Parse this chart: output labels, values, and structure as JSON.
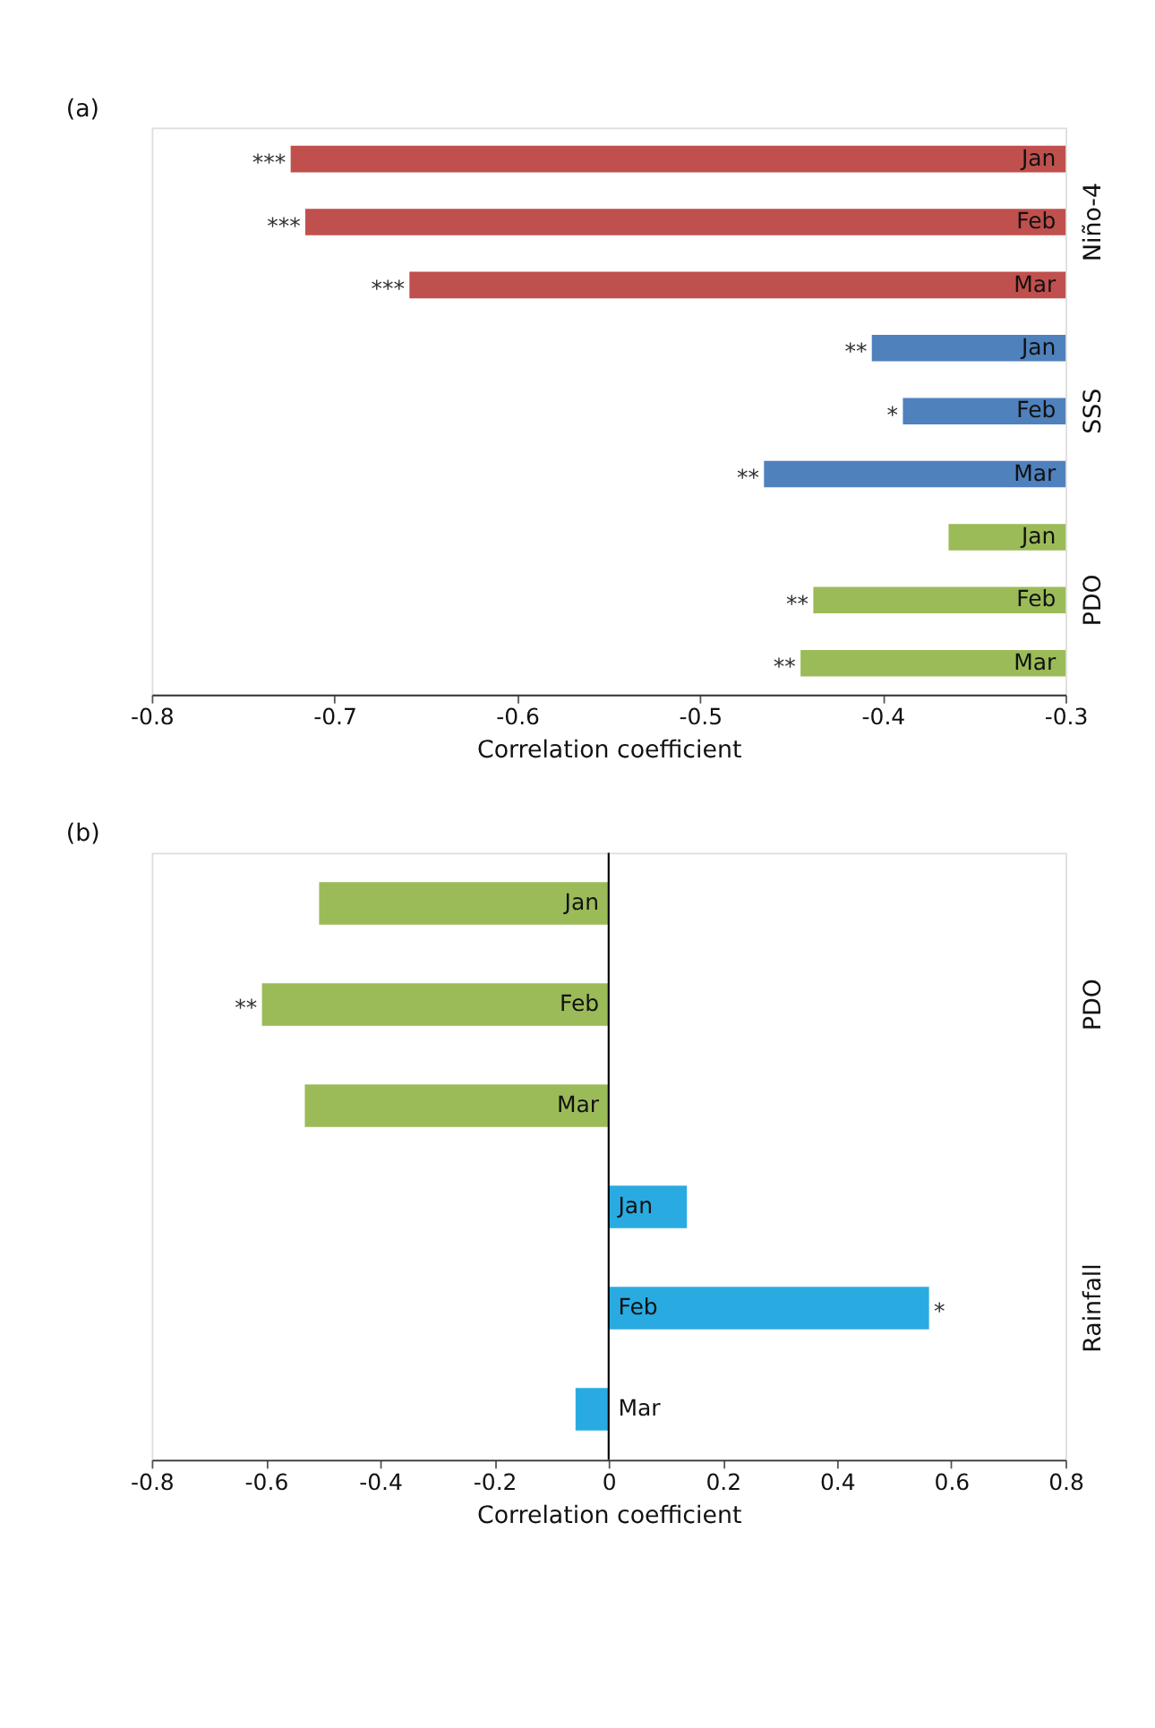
{
  "chart_data": [
    {
      "type": "bar",
      "title": "(a)",
      "orientation": "horizontal",
      "xlabel": "Correlation coefficient",
      "categories": [
        "Jan",
        "Feb",
        "Mar",
        "Jan",
        "Feb",
        "Mar",
        "Jan",
        "Feb",
        "Mar"
      ],
      "series": [
        {
          "name": "Niño-4",
          "color": "#c0504d",
          "values": [
            -0.724,
            -0.716,
            -0.659,
            null,
            null,
            null,
            null,
            null,
            null
          ],
          "value_labels": [
            "***",
            "***",
            "***",
            null,
            null,
            null,
            null,
            null,
            null
          ]
        },
        {
          "name": "SSS",
          "color": "#4f81bd",
          "values": [
            null,
            null,
            null,
            -0.406,
            -0.389,
            -0.465,
            null,
            null,
            null
          ],
          "value_labels": [
            null,
            null,
            null,
            "**",
            "*",
            "**",
            null,
            null,
            null
          ]
        },
        {
          "name": "PDO",
          "color": "#9bbb59",
          "values": [
            null,
            null,
            null,
            null,
            null,
            null,
            -0.364,
            -0.438,
            -0.445
          ],
          "value_labels": [
            null,
            null,
            null,
            null,
            null,
            null,
            null,
            "**",
            "**"
          ]
        }
      ],
      "xlim": [
        -0.8,
        -0.3
      ],
      "xticks": [
        -0.8,
        -0.7,
        -0.6,
        -0.5,
        -0.4,
        -0.3
      ],
      "grid": false,
      "legend": false,
      "tick_labels": "x"
    },
    {
      "type": "bar",
      "title": "(b)",
      "orientation": "horizontal",
      "xlabel": "Correlation coefficient",
      "categories": [
        "Jan",
        "Feb",
        "Mar",
        "Jan",
        "Feb",
        "Mar"
      ],
      "series": [
        {
          "name": "PDO",
          "color": "#9bbb59",
          "values": [
            -0.507,
            -0.607,
            -0.532,
            null,
            null,
            null
          ],
          "value_labels": [
            null,
            "**",
            null,
            null,
            null,
            null
          ]
        },
        {
          "name": "Rainfall",
          "color": "#29abe2",
          "values": [
            null,
            null,
            null,
            0.137,
            0.561,
            -0.058
          ],
          "value_labels": [
            null,
            null,
            null,
            null,
            "*",
            null
          ]
        }
      ],
      "xlim": [
        -0.8,
        0.8
      ],
      "xticks": [
        -0.8,
        -0.6,
        -0.4,
        -0.2,
        0,
        0.2,
        0.4,
        0.6,
        0.8
      ],
      "ref_lines": [
        {
          "axis": "x",
          "value": 0
        }
      ],
      "grid": false,
      "legend": false,
      "tick_labels": "x"
    }
  ]
}
